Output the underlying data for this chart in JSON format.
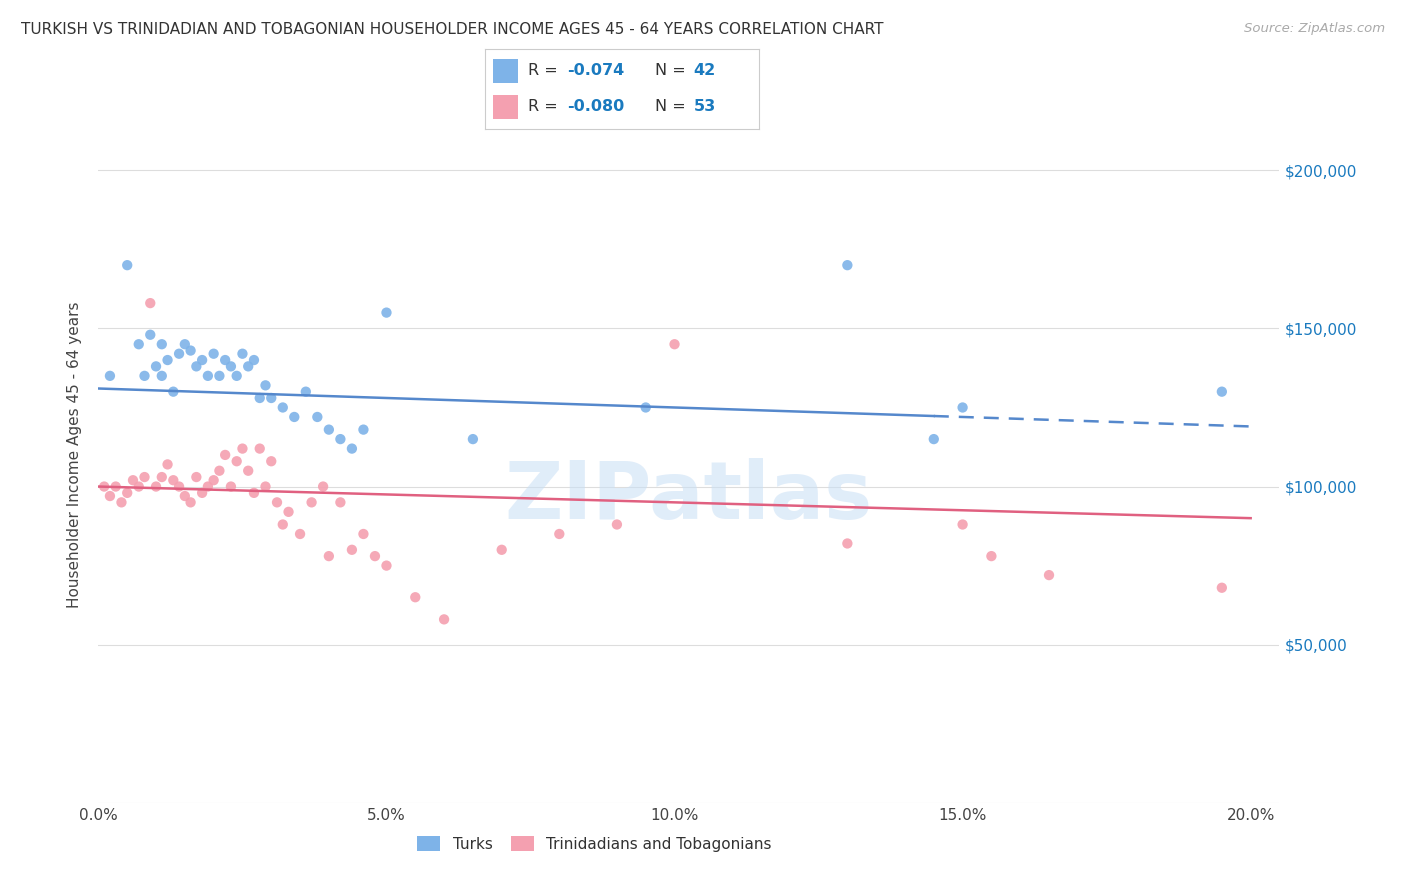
{
  "title": "TURKISH VS TRINIDADIAN AND TOBAGONIAN HOUSEHOLDER INCOME AGES 45 - 64 YEARS CORRELATION CHART",
  "source": "Source: ZipAtlas.com",
  "ylabel": "Householder Income Ages 45 - 64 years",
  "xlabel_ticks": [
    "0.0%",
    "5.0%",
    "10.0%",
    "15.0%",
    "20.0%"
  ],
  "xlabel_vals": [
    0.0,
    0.05,
    0.1,
    0.15,
    0.2
  ],
  "yright_labels": [
    "$50,000",
    "$100,000",
    "$150,000",
    "$200,000"
  ],
  "yright_vals": [
    50000,
    100000,
    150000,
    200000
  ],
  "legend_r_blue": "-0.074",
  "legend_n_blue": "42",
  "legend_r_pink": "-0.080",
  "legend_n_pink": "53",
  "blue_color": "#7EB3E8",
  "pink_color": "#F4A0B0",
  "trendline_blue": "#5588CC",
  "trendline_pink": "#E06080",
  "trendline_blue_solid_end": 0.145,
  "watermark_text": "ZIPatlas",
  "blue_scatter_x": [
    0.002,
    0.005,
    0.007,
    0.008,
    0.009,
    0.01,
    0.011,
    0.011,
    0.012,
    0.013,
    0.014,
    0.015,
    0.016,
    0.017,
    0.018,
    0.019,
    0.02,
    0.021,
    0.022,
    0.023,
    0.024,
    0.025,
    0.026,
    0.027,
    0.028,
    0.029,
    0.03,
    0.032,
    0.034,
    0.036,
    0.038,
    0.04,
    0.042,
    0.044,
    0.046,
    0.05,
    0.065,
    0.095,
    0.13,
    0.145,
    0.15,
    0.195
  ],
  "blue_scatter_y": [
    135000,
    170000,
    145000,
    135000,
    148000,
    138000,
    145000,
    135000,
    140000,
    130000,
    142000,
    145000,
    143000,
    138000,
    140000,
    135000,
    142000,
    135000,
    140000,
    138000,
    135000,
    142000,
    138000,
    140000,
    128000,
    132000,
    128000,
    125000,
    122000,
    130000,
    122000,
    118000,
    115000,
    112000,
    118000,
    155000,
    115000,
    125000,
    170000,
    115000,
    125000,
    130000
  ],
  "pink_scatter_x": [
    0.001,
    0.002,
    0.003,
    0.004,
    0.005,
    0.006,
    0.007,
    0.008,
    0.009,
    0.01,
    0.011,
    0.012,
    0.013,
    0.014,
    0.015,
    0.016,
    0.017,
    0.018,
    0.019,
    0.02,
    0.021,
    0.022,
    0.023,
    0.024,
    0.025,
    0.026,
    0.027,
    0.028,
    0.029,
    0.03,
    0.031,
    0.032,
    0.033,
    0.035,
    0.037,
    0.039,
    0.04,
    0.042,
    0.044,
    0.046,
    0.048,
    0.05,
    0.055,
    0.06,
    0.07,
    0.08,
    0.09,
    0.1,
    0.13,
    0.15,
    0.155,
    0.165,
    0.195
  ],
  "pink_scatter_y": [
    100000,
    97000,
    100000,
    95000,
    98000,
    102000,
    100000,
    103000,
    158000,
    100000,
    103000,
    107000,
    102000,
    100000,
    97000,
    95000,
    103000,
    98000,
    100000,
    102000,
    105000,
    110000,
    100000,
    108000,
    112000,
    105000,
    98000,
    112000,
    100000,
    108000,
    95000,
    88000,
    92000,
    85000,
    95000,
    100000,
    78000,
    95000,
    80000,
    85000,
    78000,
    75000,
    65000,
    58000,
    80000,
    85000,
    88000,
    145000,
    82000,
    88000,
    78000,
    72000,
    68000
  ],
  "blue_trend_x0": 0.0,
  "blue_trend_y0": 131000,
  "blue_trend_x1": 0.2,
  "blue_trend_y1": 119000,
  "pink_trend_x0": 0.0,
  "pink_trend_y0": 100000,
  "pink_trend_x1": 0.2,
  "pink_trend_y1": 90000,
  "xlim": [
    0.0,
    0.205
  ],
  "ylim": [
    0,
    220000
  ],
  "background_color": "#FFFFFF",
  "grid_color": "#DDDDDD",
  "grid_lw": 0.8
}
